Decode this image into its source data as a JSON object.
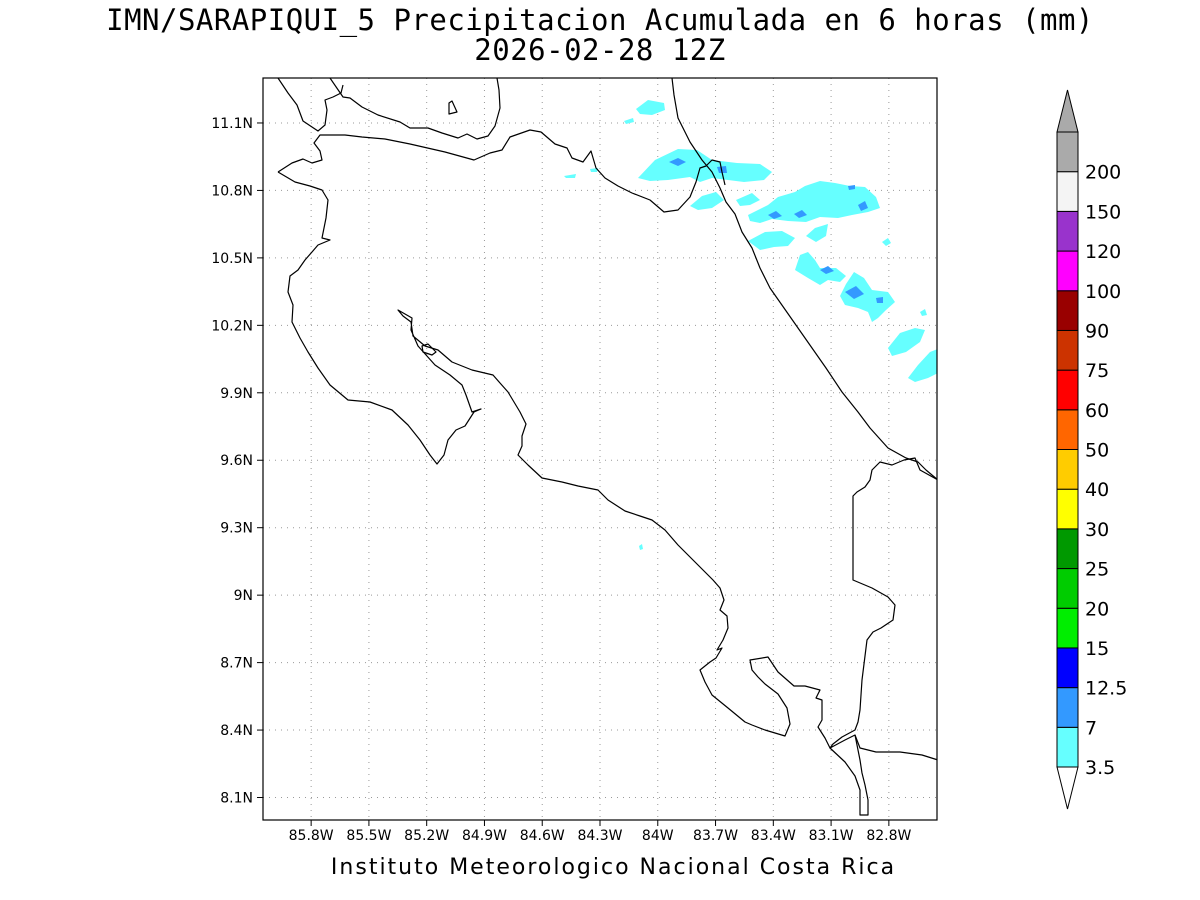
{
  "title": {
    "line1": "IMN/SARAPIQUI_5 Precipitacion Acumulada en 6 horas (mm)",
    "line2": "2026-02-28 12Z"
  },
  "footer": "Instituto Meteorologico Nacional Costa Rica",
  "map": {
    "lon_range": [
      -86.05,
      -82.55
    ],
    "lat_range": [
      8.0,
      11.3
    ],
    "lon_ticks": [
      {
        "value": -85.8,
        "label": "85.8W"
      },
      {
        "value": -85.5,
        "label": "85.5W"
      },
      {
        "value": -85.2,
        "label": "85.2W"
      },
      {
        "value": -84.9,
        "label": "84.9W"
      },
      {
        "value": -84.6,
        "label": "84.6W"
      },
      {
        "value": -84.3,
        "label": "84.3W"
      },
      {
        "value": -84.0,
        "label": "84W"
      },
      {
        "value": -83.7,
        "label": "83.7W"
      },
      {
        "value": -83.4,
        "label": "83.4W"
      },
      {
        "value": -83.1,
        "label": "83.1W"
      },
      {
        "value": -82.8,
        "label": "82.8W"
      }
    ],
    "lat_ticks": [
      {
        "value": 11.1,
        "label": "11.1N"
      },
      {
        "value": 10.8,
        "label": "10.8N"
      },
      {
        "value": 10.5,
        "label": "10.5N"
      },
      {
        "value": 10.2,
        "label": "10.2N"
      },
      {
        "value": 9.9,
        "label": "9.9N"
      },
      {
        "value": 9.6,
        "label": "9.6N"
      },
      {
        "value": 9.3,
        "label": "9.3N"
      },
      {
        "value": 9.0,
        "label": "9N"
      },
      {
        "value": 8.7,
        "label": "8.7N"
      },
      {
        "value": 8.4,
        "label": "8.4N"
      },
      {
        "value": 8.1,
        "label": "8.1N"
      }
    ],
    "grid": "dotted"
  },
  "colorbar": {
    "labels": [
      "3.5",
      "7",
      "12.5",
      "15",
      "20",
      "25",
      "30",
      "40",
      "50",
      "60",
      "75",
      "90",
      "100",
      "120",
      "150",
      "200"
    ],
    "colors": [
      "#66ffff",
      "#3399ff",
      "#0000ff",
      "#00ee00",
      "#00cc00",
      "#009900",
      "#ffff00",
      "#ffcc00",
      "#ff6600",
      "#ff0000",
      "#cc3300",
      "#990000",
      "#ff00ff",
      "#9933cc",
      "#f4f4f4",
      "#aaaaaa"
    ],
    "under_color": "#ffffff",
    "over_color": "#aaaaaa"
  },
  "colors": {
    "light_rain": "#66ffff",
    "moderate_rain": "#3399ff"
  }
}
